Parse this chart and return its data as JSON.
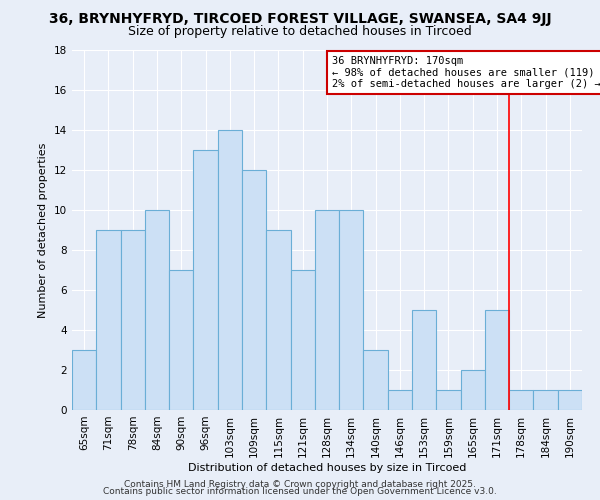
{
  "title": "36, BRYNHYFRYD, TIRCOED FOREST VILLAGE, SWANSEA, SA4 9JJ",
  "subtitle": "Size of property relative to detached houses in Tircoed",
  "xlabel": "Distribution of detached houses by size in Tircoed",
  "ylabel": "Number of detached properties",
  "categories": [
    "65sqm",
    "71sqm",
    "78sqm",
    "84sqm",
    "90sqm",
    "96sqm",
    "103sqm",
    "109sqm",
    "115sqm",
    "121sqm",
    "128sqm",
    "134sqm",
    "140sqm",
    "146sqm",
    "153sqm",
    "159sqm",
    "165sqm",
    "171sqm",
    "178sqm",
    "184sqm",
    "190sqm"
  ],
  "values": [
    3,
    9,
    9,
    10,
    7,
    13,
    14,
    12,
    9,
    7,
    10,
    10,
    3,
    1,
    5,
    1,
    2,
    5,
    1,
    1,
    1
  ],
  "bar_color": "#cce0f5",
  "bar_edge_color": "#6aaed6",
  "background_color": "#e8eef8",
  "grid_color": "#ffffff",
  "ylim": [
    0,
    18
  ],
  "yticks": [
    0,
    2,
    4,
    6,
    8,
    10,
    12,
    14,
    16,
    18
  ],
  "red_line_index": 17,
  "annotation_text": "36 BRYNHYFRYD: 170sqm\n← 98% of detached houses are smaller (119)\n2% of semi-detached houses are larger (2) →",
  "annotation_box_color": "#ffffff",
  "annotation_box_edge_color": "#cc0000",
  "footer_line1": "Contains HM Land Registry data © Crown copyright and database right 2025.",
  "footer_line2": "Contains public sector information licensed under the Open Government Licence v3.0.",
  "title_fontsize": 10,
  "subtitle_fontsize": 9,
  "axis_label_fontsize": 8,
  "tick_fontsize": 7.5,
  "annotation_fontsize": 7.5,
  "footer_fontsize": 6.5
}
